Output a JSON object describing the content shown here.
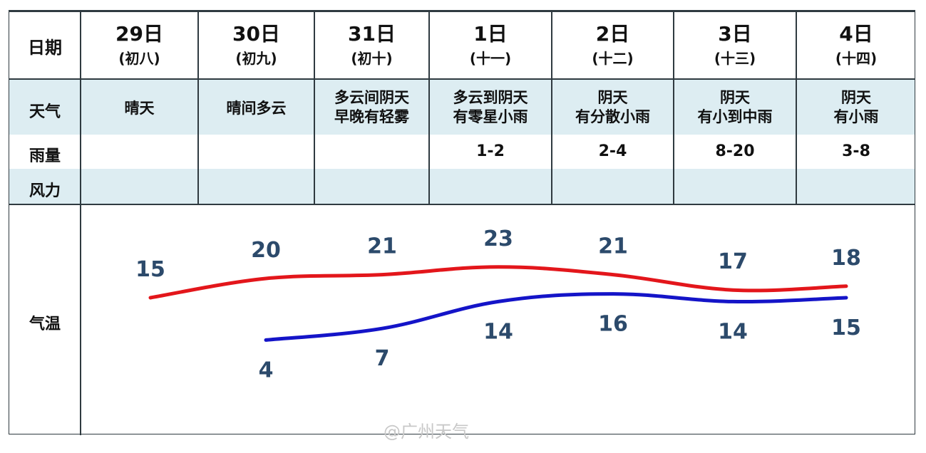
{
  "header": {
    "row_labels": {
      "date": "日期",
      "weather": "天气",
      "rain": "雨量",
      "wind": "风力",
      "temp": "气温"
    }
  },
  "days": [
    {
      "date": "29日",
      "lunar": "(初八)",
      "weather": [
        "晴天"
      ],
      "rain": "",
      "wind": ""
    },
    {
      "date": "30日",
      "lunar": "(初九)",
      "weather": [
        "晴间多云"
      ],
      "rain": "",
      "wind": ""
    },
    {
      "date": "31日",
      "lunar": "(初十)",
      "weather": [
        "多云间阴天",
        "早晚有轻雾"
      ],
      "rain": "",
      "wind": ""
    },
    {
      "date": "1日",
      "lunar": "(十一)",
      "weather": [
        "多云到阴天",
        "有零星小雨"
      ],
      "rain": "1-2",
      "wind": ""
    },
    {
      "date": "2日",
      "lunar": "(十二)",
      "weather": [
        "阴天",
        "有分散小雨"
      ],
      "rain": "2-4",
      "wind": ""
    },
    {
      "date": "3日",
      "lunar": "(十三)",
      "weather": [
        "阴天",
        "有小到中雨"
      ],
      "rain": "8-20",
      "wind": ""
    },
    {
      "date": "4日",
      "lunar": "(十四)",
      "weather": [
        "阴天",
        "有小雨"
      ],
      "rain": "3-8",
      "wind": ""
    }
  ],
  "chart_data": {
    "type": "line",
    "categories": [
      "29日",
      "30日",
      "31日",
      "1日",
      "2日",
      "3日",
      "4日"
    ],
    "series": [
      {
        "values": [
          15,
          20,
          21,
          23,
          21,
          17,
          18
        ],
        "color": "#e3161b"
      },
      {
        "values": [
          null,
          4,
          7,
          14,
          16,
          14,
          15
        ],
        "color": "#1414c8"
      }
    ],
    "label_color": "#2c4a6b"
  },
  "watermark": "@广州天气"
}
